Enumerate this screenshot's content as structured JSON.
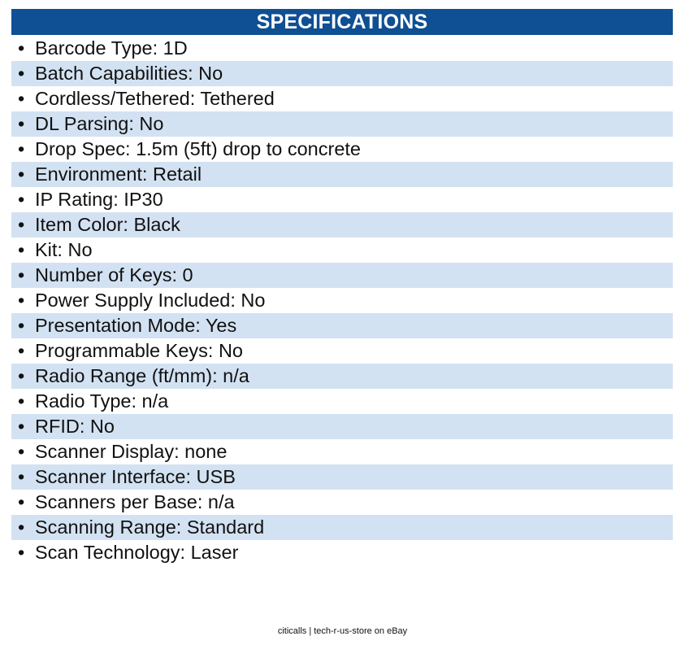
{
  "header": {
    "title": "SPECIFICATIONS"
  },
  "bullet": "•",
  "specs": [
    "Barcode Type: 1D",
    "Batch Capabilities: No",
    "Cordless/Tethered: Tethered",
    "DL Parsing: No",
    "Drop Spec: 1.5m (5ft) drop to concrete",
    "Environment: Retail",
    "IP Rating: IP30",
    "Item Color: Black",
    "Kit: No",
    "Number of Keys: 0",
    "Power Supply Included: No",
    "Presentation Mode: Yes",
    "Programmable Keys: No",
    "Radio Range (ft/mm): n/a",
    "Radio Type: n/a",
    "RFID: No",
    "Scanner Display: none",
    "Scanner Interface: USB",
    "Scanners per Base: n/a",
    "Scanning Range: Standard",
    "Scan Technology: Laser"
  ],
  "footer": {
    "text": "citicalls | tech-r-us-store on eBay"
  },
  "colors": {
    "header_bg": "#0f4f93",
    "row_shade": "#d3e2f2"
  }
}
